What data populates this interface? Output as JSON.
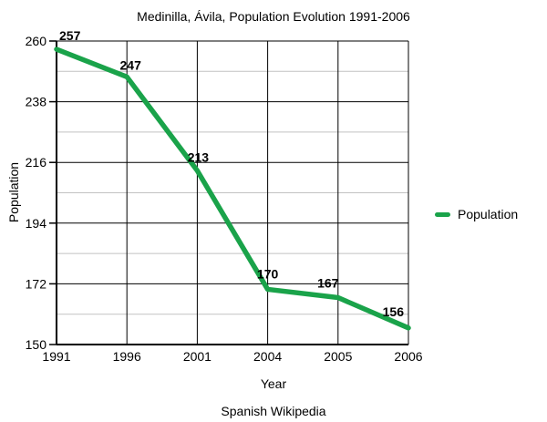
{
  "colors": {
    "line": "#1aa34a",
    "major_grid": "#000000",
    "minor_grid": "#c2c2c2",
    "axis": "#000000",
    "text": "#000000",
    "background": "#ffffff"
  },
  "chart_data": {
    "type": "line",
    "title": "Medinilla, Ávila, Population Evolution 1991-2006",
    "categories": [
      "1991",
      "1996",
      "2001",
      "2004",
      "2005",
      "2006"
    ],
    "series": [
      {
        "name": "Population",
        "values": [
          257,
          247,
          213,
          170,
          167,
          156
        ],
        "color": "#1aa34a"
      }
    ],
    "data_labels": [
      "257",
      "247",
      "213",
      "170",
      "167",
      "156"
    ],
    "xlabel": "Year",
    "ylabel": "Population",
    "ylim": [
      150,
      260
    ],
    "yticks": [
      150,
      172,
      194,
      216,
      238,
      260
    ],
    "y_minor_ticks": [
      161,
      183,
      205,
      227,
      249
    ],
    "grid": "major-black-and-minor-gray-horizontal-plus-vertical-at-categories",
    "legend": {
      "position": "right",
      "label": "Population"
    },
    "caption": "Spanish Wikipedia"
  }
}
